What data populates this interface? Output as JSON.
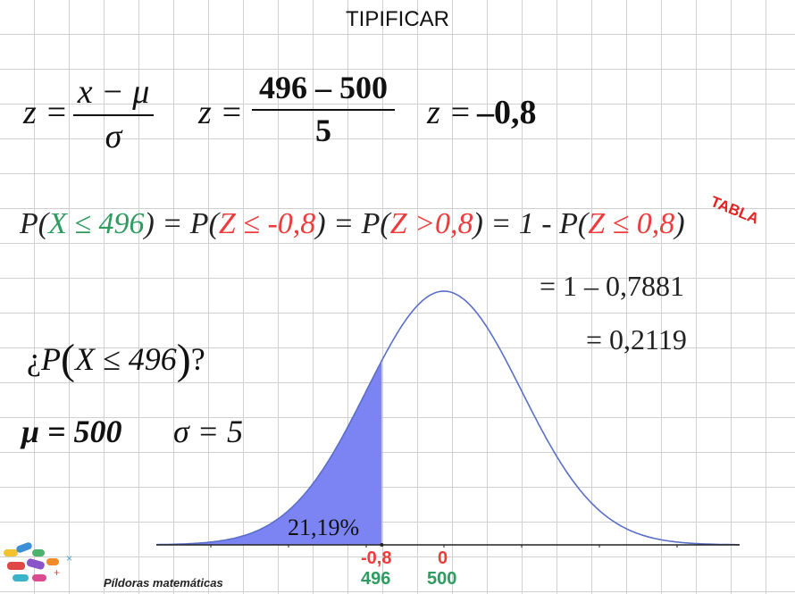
{
  "title": "TIPIFICAR",
  "formula": {
    "general": {
      "lhs": "z =",
      "numerator": "x − μ",
      "denominator": "σ"
    },
    "substituted": {
      "lhs": "z =",
      "numerator": "496 – 500",
      "denominator": "5"
    },
    "result": {
      "lhs": "z =",
      "value": "–0,8"
    }
  },
  "probability_line": {
    "p1": "P(",
    "x_expr": "X ≤ 496",
    "p1_close": ") = P(",
    "z_expr1": "Z ≤ -0,8",
    "p2_close": ") = P(",
    "z_expr2": "Z >0,8",
    "p3_close": ") = 1 - P(",
    "z_expr3": "Z ≤ 0,8",
    "p4_close": ")",
    "tabla_label": "TABLA"
  },
  "steps": {
    "step1": "= 1 – 0,7881",
    "step2": "= 0,2119"
  },
  "question": {
    "prefix": "¿",
    "p": "P",
    "open": "(",
    "body": "X ≤ 496",
    "close": ")",
    "suffix": "?"
  },
  "params": {
    "mu": "μ = 500",
    "sigma": "σ = 5"
  },
  "graph": {
    "area_label": "21,19%",
    "z_ticks": [
      "-0,8",
      "0"
    ],
    "x_ticks": [
      "496",
      "500"
    ],
    "curve_color": "#5a6fc8",
    "area_color": "#7b84f2"
  },
  "chart_data": {
    "type": "area",
    "distribution": "normal",
    "mean": 0,
    "sd": 1,
    "shaded_upper_z": -0.8,
    "shaded_area_percent": 21.19,
    "z_ticks": [
      -0.8,
      0
    ],
    "x_ticks": [
      496,
      500
    ]
  },
  "brand": {
    "text": "Píldoras matemáticas"
  }
}
